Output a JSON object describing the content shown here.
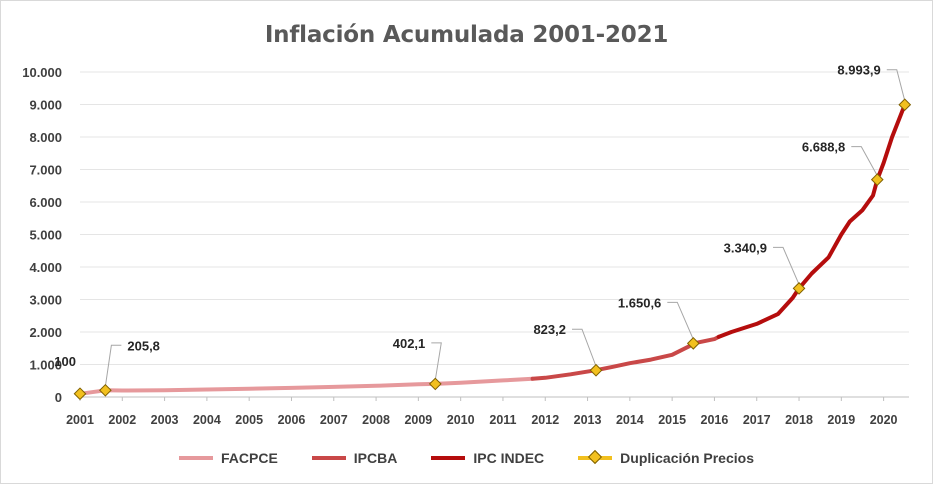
{
  "title": "Inflación Acumulada 2001-2021",
  "chart_data": {
    "type": "line",
    "title": "Inflación Acumulada 2001-2021",
    "xlabel": "",
    "ylabel": "",
    "x_tick_labels": [
      "2001",
      "2002",
      "2003",
      "2004",
      "2005",
      "2006",
      "2007",
      "2008",
      "2009",
      "2010",
      "2011",
      "2012",
      "2013",
      "2014",
      "2015",
      "2016",
      "2017",
      "2018",
      "2019",
      "2020"
    ],
    "y_tick_labels": [
      "0",
      "1.000",
      "2.000",
      "3.000",
      "4.000",
      "5.000",
      "6.000",
      "7.000",
      "8.000",
      "9.000",
      "10.000"
    ],
    "xlim": [
      2001,
      2020.6
    ],
    "ylim": [
      0,
      10000
    ],
    "grid": "horizontal",
    "legend_position": "bottom",
    "series": [
      {
        "name": "FACPCE",
        "color": "#e6999c",
        "points": [
          [
            2001,
            100
          ],
          [
            2001.6,
            205.8
          ],
          [
            2002,
            200
          ],
          [
            2003,
            210
          ],
          [
            2004,
            230
          ],
          [
            2005,
            255
          ],
          [
            2006,
            280
          ],
          [
            2007,
            310
          ],
          [
            2008,
            345
          ],
          [
            2009,
            390
          ],
          [
            2009.4,
            402.1
          ],
          [
            2010,
            440
          ],
          [
            2011,
            510
          ],
          [
            2011.7,
            560
          ]
        ]
      },
      {
        "name": "IPCBA",
        "color": "#c94848",
        "points": [
          [
            2011.7,
            560
          ],
          [
            2012,
            590
          ],
          [
            2012.6,
            700
          ],
          [
            2013.2,
            823.2
          ],
          [
            2013.6,
            930
          ],
          [
            2014,
            1040
          ],
          [
            2014.5,
            1150
          ],
          [
            2015,
            1300
          ],
          [
            2015.4,
            1560
          ],
          [
            2015.5,
            1650.6
          ],
          [
            2016,
            1780
          ],
          [
            2016.1,
            1850
          ]
        ]
      },
      {
        "name": "IPC INDEC",
        "color": "#b50d0d",
        "points": [
          [
            2016.1,
            1850
          ],
          [
            2016.4,
            2000
          ],
          [
            2017,
            2250
          ],
          [
            2017.5,
            2550
          ],
          [
            2017.85,
            3050
          ],
          [
            2018,
            3340.9
          ],
          [
            2018.3,
            3800
          ],
          [
            2018.7,
            4300
          ],
          [
            2019,
            5000
          ],
          [
            2019.2,
            5400
          ],
          [
            2019.5,
            5750
          ],
          [
            2019.75,
            6200
          ],
          [
            2019.85,
            6688.8
          ],
          [
            2020,
            7200
          ],
          [
            2020.2,
            8000
          ],
          [
            2020.5,
            8993.9
          ]
        ]
      }
    ],
    "duplication_points": {
      "name": "Duplicación Precios",
      "color": "#f2c01e",
      "points": [
        [
          2001,
          100
        ],
        [
          2001.6,
          205.8
        ],
        [
          2009.4,
          402.1
        ],
        [
          2013.2,
          823.2
        ],
        [
          2015.5,
          1650.6
        ],
        [
          2018,
          3340.9
        ],
        [
          2019.85,
          6688.8
        ],
        [
          2020.5,
          8993.9
        ]
      ],
      "labels": [
        "100",
        "205,8",
        "402,1",
        "823,2",
        "1.650,6",
        "3.340,9",
        "6.688,8",
        "8.993,9"
      ]
    }
  },
  "legend": {
    "facpce": "FACPCE",
    "ipcba": "IPCBA",
    "ipc_indec": "IPC INDEC",
    "duplicacion": "Duplicación Precios"
  },
  "colors": {
    "facpce": "#e6999c",
    "ipcba": "#c94848",
    "ipc_indec": "#b50d0d",
    "marker": "#f2c01e",
    "grid": "#e5e5e5"
  }
}
